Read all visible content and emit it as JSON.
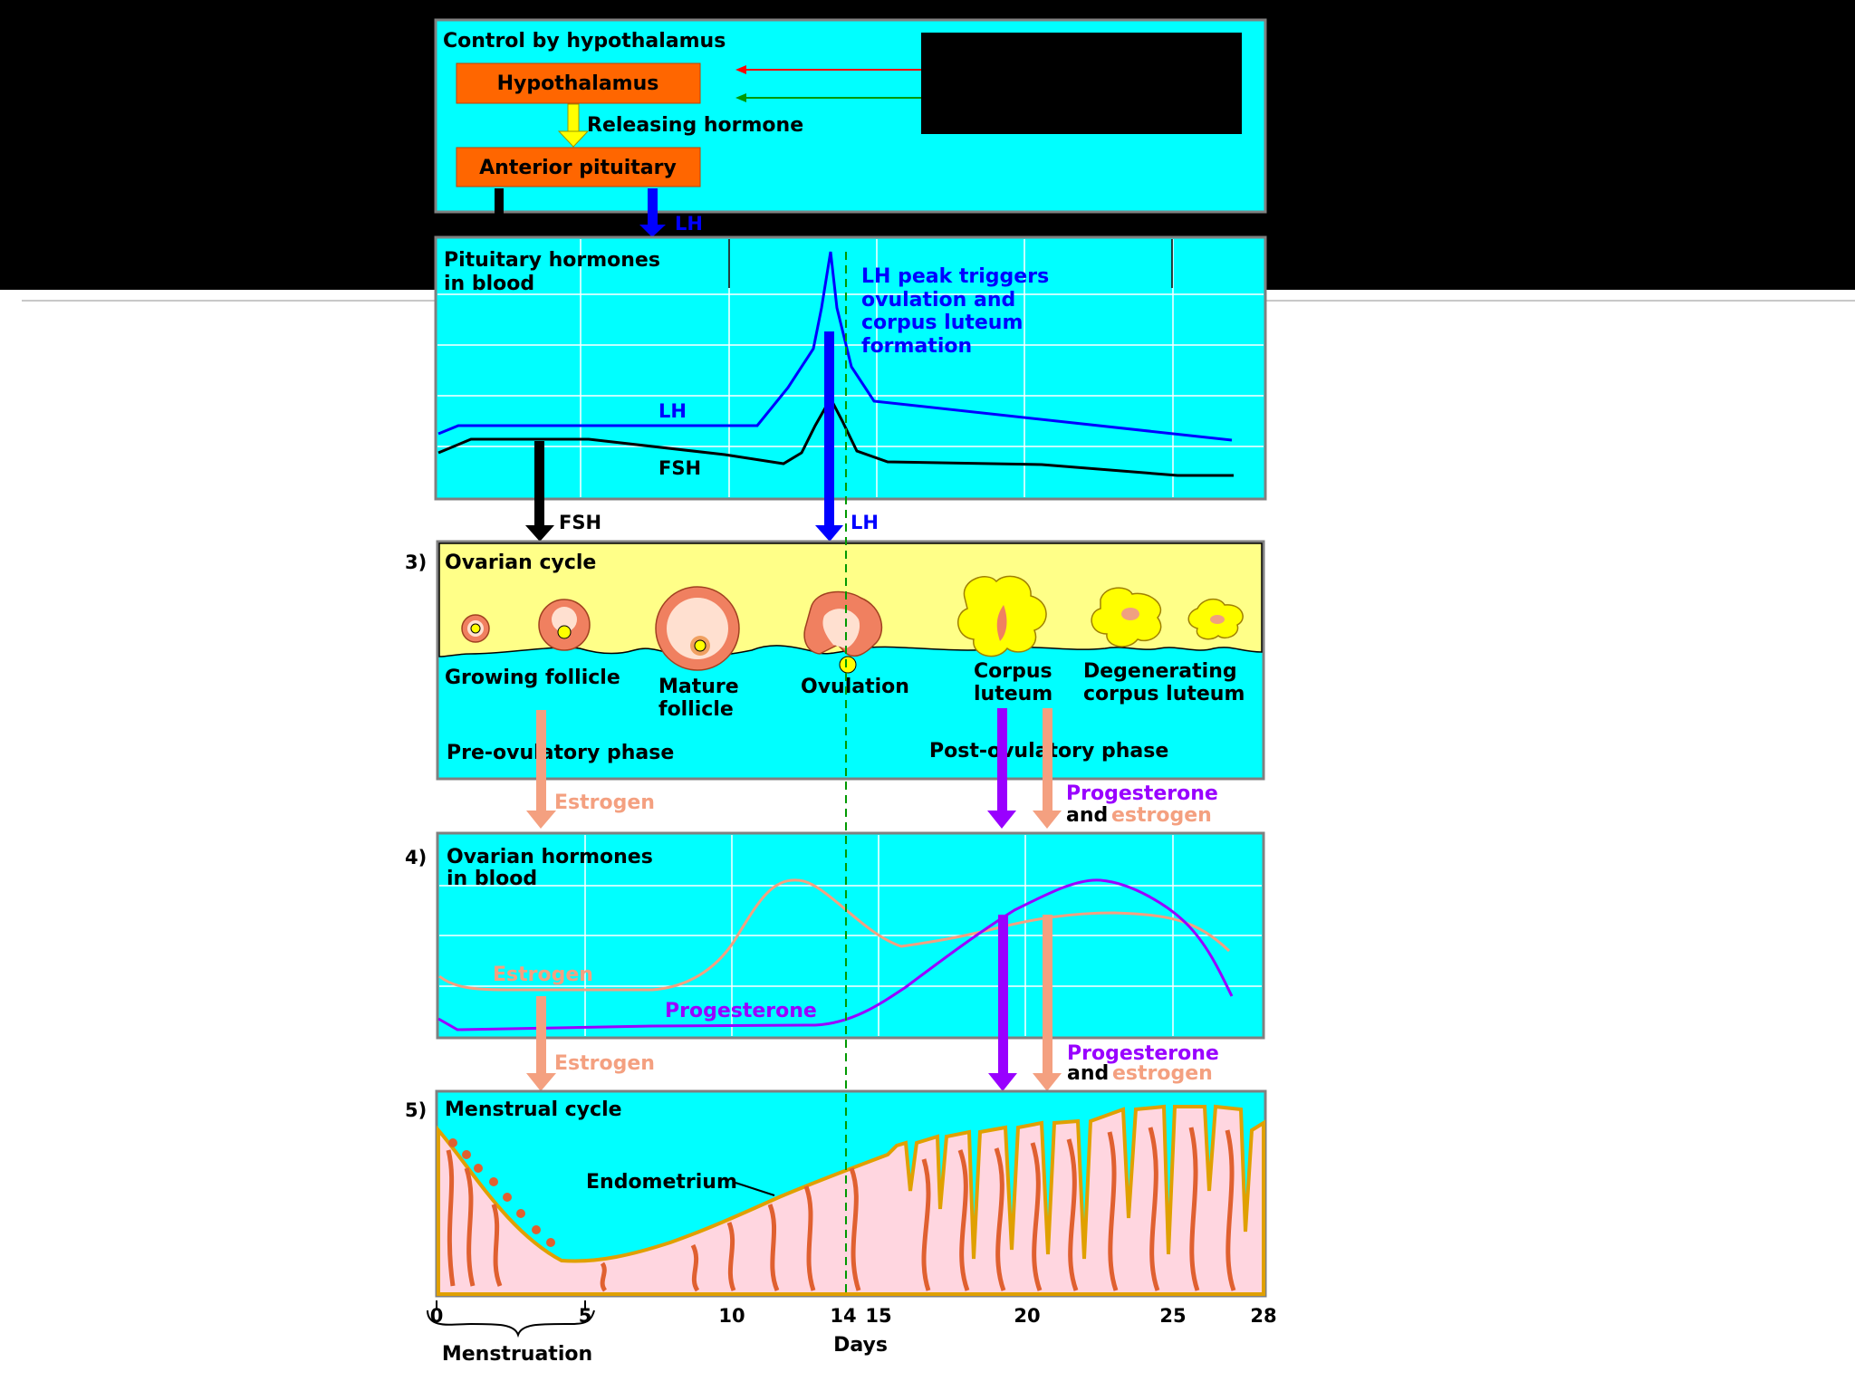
{
  "panel1": {
    "title": "Control by hypothalamus",
    "hypothalamus": "Hypothalamus",
    "releasing_hormone": "Releasing hormone",
    "anterior_pituitary": "Anterior pituitary",
    "lh_arrow": "LH"
  },
  "panel2": {
    "title_line1": "Pituitary hormones",
    "title_line2": "in blood",
    "note_lines": [
      "LH peak triggers",
      "ovulation and",
      "corpus luteum",
      "formation"
    ],
    "lh_label": "LH",
    "fsh_label": "FSH",
    "fsh_arrow": "FSH",
    "lh_arrow": "LH"
  },
  "panel3": {
    "number": "3)",
    "title": "Ovarian cycle",
    "growing": "Growing follicle",
    "mature_line1": "Mature",
    "mature_line2": "follicle",
    "ovulation": "Ovulation",
    "corpus_line1": "Corpus",
    "corpus_line2": "luteum",
    "degen_line1": "Degenerating",
    "degen_line2": "corpus luteum",
    "pre_phase": "Pre-ovulatory phase",
    "post_phase": "Post-ovulatory phase",
    "estrogen_arrow": "Estrogen",
    "prog_arrow_1": "Progesterone",
    "prog_arrow_2": "and",
    "prog_arrow_3": "estrogen"
  },
  "panel4": {
    "number": "4)",
    "title_line1": "Ovarian hormones",
    "title_line2": "in blood",
    "estrogen_label": "Estrogen",
    "progesterone_label": "Progesterone",
    "estrogen_arrow": "Estrogen",
    "prog_arrow_1": "Progesterone",
    "prog_arrow_2": "and",
    "prog_arrow_3": "estrogen"
  },
  "panel5": {
    "number": "5)",
    "title": "Menstrual cycle",
    "endometrium": "Endometrium"
  },
  "axis": {
    "ticks": [
      "0",
      "5",
      "10",
      "14",
      "15",
      "20",
      "25",
      "28"
    ],
    "label": "Days",
    "menstruation": "Menstruation"
  },
  "colors": {
    "panel": "#00ffff",
    "box": "#ff6600",
    "lh": "#0000ff",
    "fsh": "#000000",
    "estrogen": "#f4a080",
    "progesterone": "#9900ff",
    "ovary_band": "#ffff88",
    "endometrium": "#ffd6e0"
  }
}
